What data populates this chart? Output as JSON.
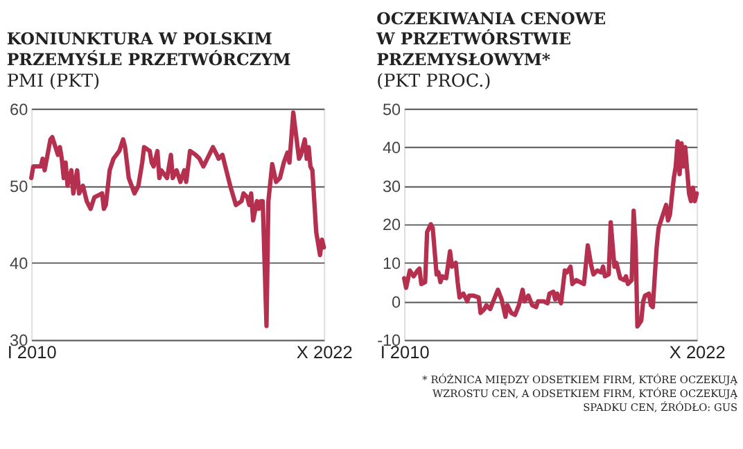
{
  "chart_data": [
    {
      "type": "line",
      "title": "KONIUNKTURA W POLSKIM PRZEMYŚLE PRZETWÓRCZYM",
      "subtitle": "PMI (PKT)",
      "color": "#b5304f",
      "grid": "y",
      "x": [
        "2010-01",
        "2010-02",
        "2010-06",
        "2010-07",
        "2010-08",
        "2010-11",
        "2010-12",
        "2011-03",
        "2011-04",
        "2011-05",
        "2011-06",
        "2011-07",
        "2011-08",
        "2011-10",
        "2011-11",
        "2012-01",
        "2012-02",
        "2012-04",
        "2012-06",
        "2012-08",
        "2012-10",
        "2013-02",
        "2013-03",
        "2013-04",
        "2013-06",
        "2013-08",
        "2013-11",
        "2014-01",
        "2014-02",
        "2014-04",
        "2014-07",
        "2014-09",
        "2014-11",
        "2014-12",
        "2015-03",
        "2015-04",
        "2015-05",
        "2015-07",
        "2015-08",
        "2015-09",
        "2015-12",
        "2016-02",
        "2016-03",
        "2016-05",
        "2016-07",
        "2016-09",
        "2016-10",
        "2016-12",
        "2017-03",
        "2017-05",
        "2017-07",
        "2017-09",
        "2017-12",
        "2018-02",
        "2018-03",
        "2018-05",
        "2018-07",
        "2018-09",
        "2018-12",
        "2019-03",
        "2019-04",
        "2019-06",
        "2019-07",
        "2019-08",
        "2019-09",
        "2019-11",
        "2019-12",
        "2020-01",
        "2020-02",
        "2020-04",
        "2020-05",
        "2020-07",
        "2020-09",
        "2020-11",
        "2021-01",
        "2021-03",
        "2021-04",
        "2021-06",
        "2021-07",
        "2021-09",
        "2021-10",
        "2021-12",
        "2022-01",
        "2022-02",
        "2022-03",
        "2022-04",
        "2022-06",
        "2022-08",
        "2022-09",
        "2022-10"
      ],
      "values": [
        51,
        52.5,
        52.5,
        53.5,
        52,
        56,
        56.3,
        54,
        55,
        53.5,
        51,
        53,
        50,
        52,
        49,
        52,
        49,
        50,
        48,
        47,
        48.5,
        49,
        47,
        47.5,
        52,
        53.5,
        54.5,
        56,
        55,
        51,
        49,
        50,
        53,
        55,
        54.5,
        53,
        52.5,
        54.5,
        51,
        52,
        51,
        54,
        51,
        52,
        50.5,
        52,
        50.5,
        54.5,
        54,
        53.5,
        52.5,
        53.5,
        55,
        54,
        53.5,
        54,
        52,
        50,
        47.5,
        48,
        49,
        48.5,
        47.5,
        49,
        45.5,
        48,
        47,
        48,
        48,
        31.8,
        48,
        52.8,
        50.5,
        51,
        53,
        54.3,
        53,
        59.5,
        57.5,
        53.5,
        54,
        56,
        53.5,
        55,
        52.5,
        52,
        44,
        41,
        43,
        42
      ],
      "xlim": [
        "2010-01",
        "2022-10"
      ],
      "xticks": [
        {
          "value": "2010-01",
          "label": "I 2010"
        },
        {
          "value": "2022-10",
          "label": "X 2022"
        }
      ],
      "ylim": [
        30,
        60
      ],
      "yticks": [
        30,
        40,
        50,
        60
      ]
    },
    {
      "type": "line",
      "title": "OCZEKIWANIA CENOWE W PRZETWÓRSTWIE PRZEMYSŁOWYM*",
      "subtitle": "(PKT PROC.)",
      "color": "#b5304f",
      "grid": "y",
      "x": [
        "2010-01",
        "2010-02",
        "2010-04",
        "2010-06",
        "2010-08",
        "2010-09",
        "2010-10",
        "2010-12",
        "2011-01",
        "2011-03",
        "2011-04",
        "2011-06",
        "2011-07",
        "2011-08",
        "2011-09",
        "2011-11",
        "2012-01",
        "2012-02",
        "2012-04",
        "2012-05",
        "2012-06",
        "2012-08",
        "2012-10",
        "2012-11",
        "2013-01",
        "2013-04",
        "2013-05",
        "2013-07",
        "2013-08",
        "2013-10",
        "2013-12",
        "2014-02",
        "2014-04",
        "2014-06",
        "2014-07",
        "2014-09",
        "2014-11",
        "2015-01",
        "2015-03",
        "2015-04",
        "2015-06",
        "2015-08",
        "2015-10",
        "2015-11",
        "2016-02",
        "2016-04",
        "2016-05",
        "2016-07",
        "2016-08",
        "2016-09",
        "2016-11",
        "2017-01",
        "2017-02",
        "2017-04",
        "2017-05",
        "2017-07",
        "2017-09",
        "2017-11",
        "2018-01",
        "2018-03",
        "2018-04",
        "2018-06",
        "2018-08",
        "2018-09",
        "2018-10",
        "2018-12",
        "2019-01",
        "2019-03",
        "2019-04",
        "2019-06",
        "2019-08",
        "2019-09",
        "2019-10",
        "2019-12",
        "2020-01",
        "2020-02",
        "2020-03",
        "2020-05",
        "2020-06",
        "2020-07",
        "2020-09",
        "2020-10",
        "2020-11",
        "2021-01",
        "2021-02",
        "2021-04",
        "2021-06",
        "2021-07",
        "2021-08",
        "2021-10",
        "2021-11",
        "2021-12",
        "2022-01",
        "2022-02",
        "2022-03",
        "2022-04",
        "2022-06",
        "2022-07",
        "2022-08",
        "2022-09",
        "2022-10"
      ],
      "values": [
        6,
        3.5,
        8,
        6.5,
        8,
        8.5,
        4.5,
        5,
        18,
        20,
        19,
        7,
        7.5,
        5,
        6.5,
        6,
        13,
        9,
        10,
        5,
        1,
        2,
        0,
        1.5,
        1.5,
        1,
        -3,
        -2,
        -1,
        -2,
        0.5,
        3,
        0.5,
        -4,
        -1,
        -3,
        -3.5,
        -1,
        3,
        0,
        1.5,
        -1,
        -1.5,
        0,
        0,
        -0.5,
        2,
        2.5,
        0.5,
        2,
        -0.5,
        8,
        7.5,
        9,
        4.5,
        5.5,
        5,
        4.5,
        14.5,
        9,
        7,
        8,
        7.5,
        9,
        6.5,
        7,
        20.5,
        9,
        10,
        6,
        5.5,
        6.5,
        4.5,
        5.5,
        23.5,
        15,
        -6.5,
        -5,
        0,
        1.5,
        2,
        -1,
        -1.5,
        14,
        19,
        22,
        25,
        21,
        22.5,
        32,
        35,
        41.5,
        33,
        41,
        35,
        40,
        28,
        26,
        29.5,
        26,
        28
      ],
      "xlim": [
        "2010-01",
        "2022-10"
      ],
      "xticks": [
        {
          "value": "2010-01",
          "label": "I 2010"
        },
        {
          "value": "2022-10",
          "label": "X 2022"
        }
      ],
      "ylim": [
        -10,
        50
      ],
      "yticks": [
        -10,
        0,
        10,
        20,
        30,
        40,
        50
      ],
      "annotations": [
        "* RÓŻNICA MIĘDZY ODSETKIEM FIRM, KTÓRE OCZEKUJĄ WZROSTU CEN, A ODSETKIEM FIRM, KTÓRE OCZEKUJĄ SPADKU CEN, ŹRÓDŁO: GUS"
      ]
    }
  ]
}
